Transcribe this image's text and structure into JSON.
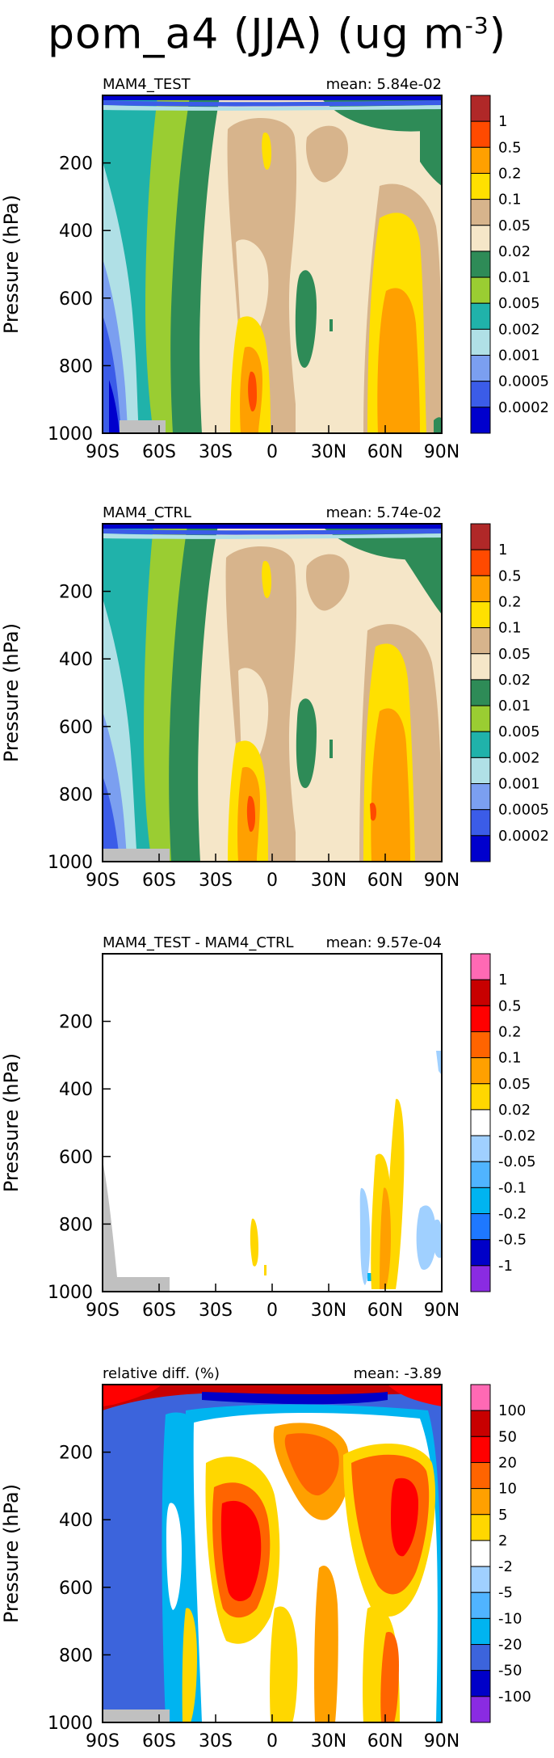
{
  "figure": {
    "title_prefix": "pom_a4 (JJA) (ug m",
    "title_exponent": "-3",
    "title_suffix": ")"
  },
  "chart_data": [
    {
      "type": "heatmap",
      "panel_label": "MAM4_TEST",
      "mean_label": "mean: 5.84e-02",
      "ylabel": "Pressure (hPa)",
      "x_ticks": [
        "90S",
        "60S",
        "30S",
        "0",
        "30N",
        "60N",
        "90N"
      ],
      "y_ticks": [
        "200",
        "400",
        "600",
        "800",
        "1000"
      ],
      "x_range": [
        -90,
        90
      ],
      "y_range": [
        1000,
        0
      ],
      "colorbar_labels": [
        "1",
        "0.5",
        "0.2",
        "0.1",
        "0.05",
        "0.02",
        "0.01",
        "0.005",
        "0.002",
        "0.001",
        "0.0005",
        "0.0002"
      ],
      "colorbar_colors": [
        "#b02828",
        "#ff4a00",
        "#ffa000",
        "#ffe000",
        "#d7b48c",
        "#f5e6c8",
        "#2e8b57",
        "#9acd32",
        "#20b2aa",
        "#b0e0e6",
        "#7b9ff0",
        "#3b5ce8",
        "#0000cd"
      ]
    },
    {
      "type": "heatmap",
      "panel_label": "MAM4_CTRL",
      "mean_label": "mean: 5.74e-02",
      "ylabel": "Pressure (hPa)",
      "x_ticks": [
        "90S",
        "60S",
        "30S",
        "0",
        "30N",
        "60N",
        "90N"
      ],
      "y_ticks": [
        "200",
        "400",
        "600",
        "800",
        "1000"
      ],
      "x_range": [
        -90,
        90
      ],
      "y_range": [
        1000,
        0
      ],
      "colorbar_labels": [
        "1",
        "0.5",
        "0.2",
        "0.1",
        "0.05",
        "0.02",
        "0.01",
        "0.005",
        "0.002",
        "0.001",
        "0.0005",
        "0.0002"
      ],
      "colorbar_colors": [
        "#b02828",
        "#ff4a00",
        "#ffa000",
        "#ffe000",
        "#d7b48c",
        "#f5e6c8",
        "#2e8b57",
        "#9acd32",
        "#20b2aa",
        "#b0e0e6",
        "#7b9ff0",
        "#3b5ce8",
        "#0000cd"
      ]
    },
    {
      "type": "heatmap",
      "panel_label": "MAM4_TEST - MAM4_CTRL",
      "mean_label": "mean: 9.57e-04",
      "ylabel": "Pressure (hPa)",
      "x_ticks": [
        "90S",
        "60S",
        "30S",
        "0",
        "30N",
        "60N",
        "90N"
      ],
      "y_ticks": [
        "200",
        "400",
        "600",
        "800",
        "1000"
      ],
      "x_range": [
        -90,
        90
      ],
      "y_range": [
        1000,
        0
      ],
      "colorbar_labels": [
        "1",
        "0.5",
        "0.2",
        "0.1",
        "0.05",
        "0.02",
        "-0.02",
        "-0.05",
        "-0.1",
        "-0.2",
        "-0.5",
        "-1"
      ],
      "colorbar_colors": [
        "#ff69b4",
        "#c80000",
        "#ff0000",
        "#ff6400",
        "#ffa000",
        "#ffd700",
        "#ffffff",
        "#a0d0ff",
        "#50b4ff",
        "#00b4f0",
        "#1e78ff",
        "#0000c8",
        "#8a2be2"
      ]
    },
    {
      "type": "heatmap",
      "panel_label": "relative diff. (%)",
      "mean_label": "mean: -3.89",
      "ylabel": "Pressure (hPa)",
      "x_ticks": [
        "90S",
        "60S",
        "30S",
        "0",
        "30N",
        "60N",
        "90N"
      ],
      "y_ticks": [
        "200",
        "400",
        "600",
        "800",
        "1000"
      ],
      "x_range": [
        -90,
        90
      ],
      "y_range": [
        1000,
        0
      ],
      "colorbar_labels": [
        "100",
        "50",
        "20",
        "10",
        "5",
        "2",
        "-2",
        "-5",
        "-10",
        "-20",
        "-50",
        "-100"
      ],
      "colorbar_colors": [
        "#ff69b4",
        "#c80000",
        "#ff0000",
        "#ff6400",
        "#ffa000",
        "#ffd700",
        "#ffffff",
        "#a0d0ff",
        "#50b4ff",
        "#00b4f0",
        "#3c64dc",
        "#0000c8",
        "#8a2be2"
      ]
    }
  ]
}
